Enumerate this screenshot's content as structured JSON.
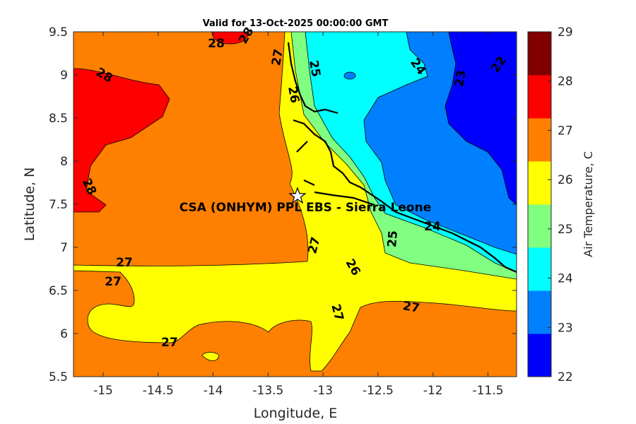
{
  "chart_data": {
    "type": "contour",
    "title": "Valid for 13-Oct-2025 00:00:00 GMT",
    "xlabel": "Longitude, E",
    "ylabel": "Latitude, N",
    "xlim": [
      -15.27,
      -11.24
    ],
    "ylim": [
      5.5,
      9.5
    ],
    "xticks": [
      "-15",
      "-14.5",
      "-14",
      "-13.5",
      "-13",
      "-12.5",
      "-12",
      "-11.5"
    ],
    "xtick_values": [
      -15,
      -14.5,
      -14,
      -13.5,
      -13,
      -12.5,
      -12,
      -11.5
    ],
    "yticks": [
      "5.5",
      "6",
      "6.5",
      "7",
      "7.5",
      "8",
      "8.5",
      "9",
      "9.5"
    ],
    "ytick_values": [
      5.5,
      6,
      6.5,
      7,
      7.5,
      8,
      8.5,
      9,
      9.5
    ],
    "colorbar": {
      "label": "Air Temperature, C",
      "ticks": [
        "22",
        "23",
        "24",
        "25",
        "26",
        "27",
        "28",
        "29"
      ],
      "range": [
        22,
        29
      ],
      "band_colors": [
        "#0000ff",
        "#0080ff",
        "#00ffff",
        "#80ff80",
        "#ffff00",
        "#ff8000",
        "#ff0000",
        "#800000"
      ]
    },
    "region_colors": {
      "t22": "#0000ff",
      "t23": "#0080ff",
      "t24": "#00ffff",
      "t25": "#80ff80",
      "t26": "#ffff00",
      "t27": "#ff8000",
      "t28": "#ff0000"
    },
    "contour_labels": [
      "28",
      "28",
      "28",
      "27",
      "27",
      "27",
      "27",
      "27",
      "27",
      "27",
      "26",
      "26",
      "25",
      "25",
      "24",
      "24",
      "23",
      "22"
    ],
    "station": {
      "name": "CSA (ONHYM) PPL EBS  - Sierra Leone",
      "lon": -13.23,
      "lat": 7.6
    }
  }
}
